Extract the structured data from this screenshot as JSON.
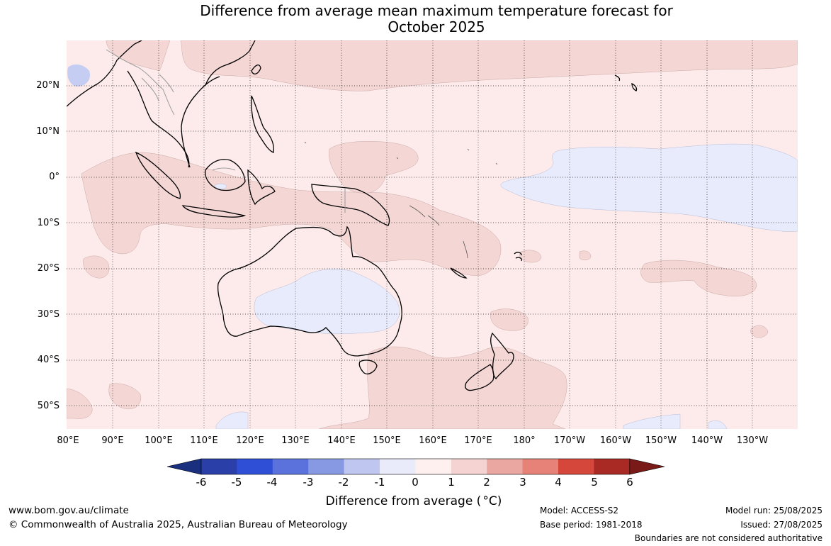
{
  "title": {
    "line1": "Difference from average mean maximum temperature forecast for",
    "line2": "October 2025"
  },
  "lat_labels": [
    "20°N",
    "10°N",
    "0°",
    "10°S",
    "20°S",
    "30°S",
    "40°S",
    "50°S"
  ],
  "lon_labels": [
    "80°E",
    "90°E",
    "100°E",
    "110°E",
    "120°E",
    "130°E",
    "140°E",
    "150°E",
    "160°E",
    "170°E",
    "180°",
    "170°W",
    "160°W",
    "150°W",
    "140°W",
    "130°W"
  ],
  "colorbar": {
    "labels": [
      "-6",
      "-5",
      "-4",
      "-3",
      "-2",
      "-1",
      "0",
      "1",
      "2",
      "3",
      "4",
      "5",
      "6"
    ],
    "colors": [
      "#1a2f7d",
      "#2b3fa8",
      "#2f4fd6",
      "#5b72dc",
      "#8899e3",
      "#bfc6ef",
      "#e9ebfb",
      "#fdf0ef",
      "#f4d3d2",
      "#eaa7a2",
      "#e68278",
      "#d6473b",
      "#a92924",
      "#7a1a18"
    ],
    "title_text": "Difference from average (",
    "title_unit": "°C",
    "title_close": ")"
  },
  "map_colors": {
    "base": "#fcebea",
    "warm": "#f4d6d4",
    "cool": "#e8ebfb",
    "cold": "#c5cdf3"
  },
  "footer": {
    "website": "www.bom.gov.au/climate",
    "copyright": "© Commonwealth of Australia 2025, Australian Bureau of Meteorology",
    "model": "Model: ACCESS-S2",
    "base_period": "Base period: 1981-2018",
    "model_run": "Model run: 25/08/2025",
    "issued": "Issued: 27/08/2025",
    "disclaimer": "Boundaries are not considered authoritative"
  }
}
